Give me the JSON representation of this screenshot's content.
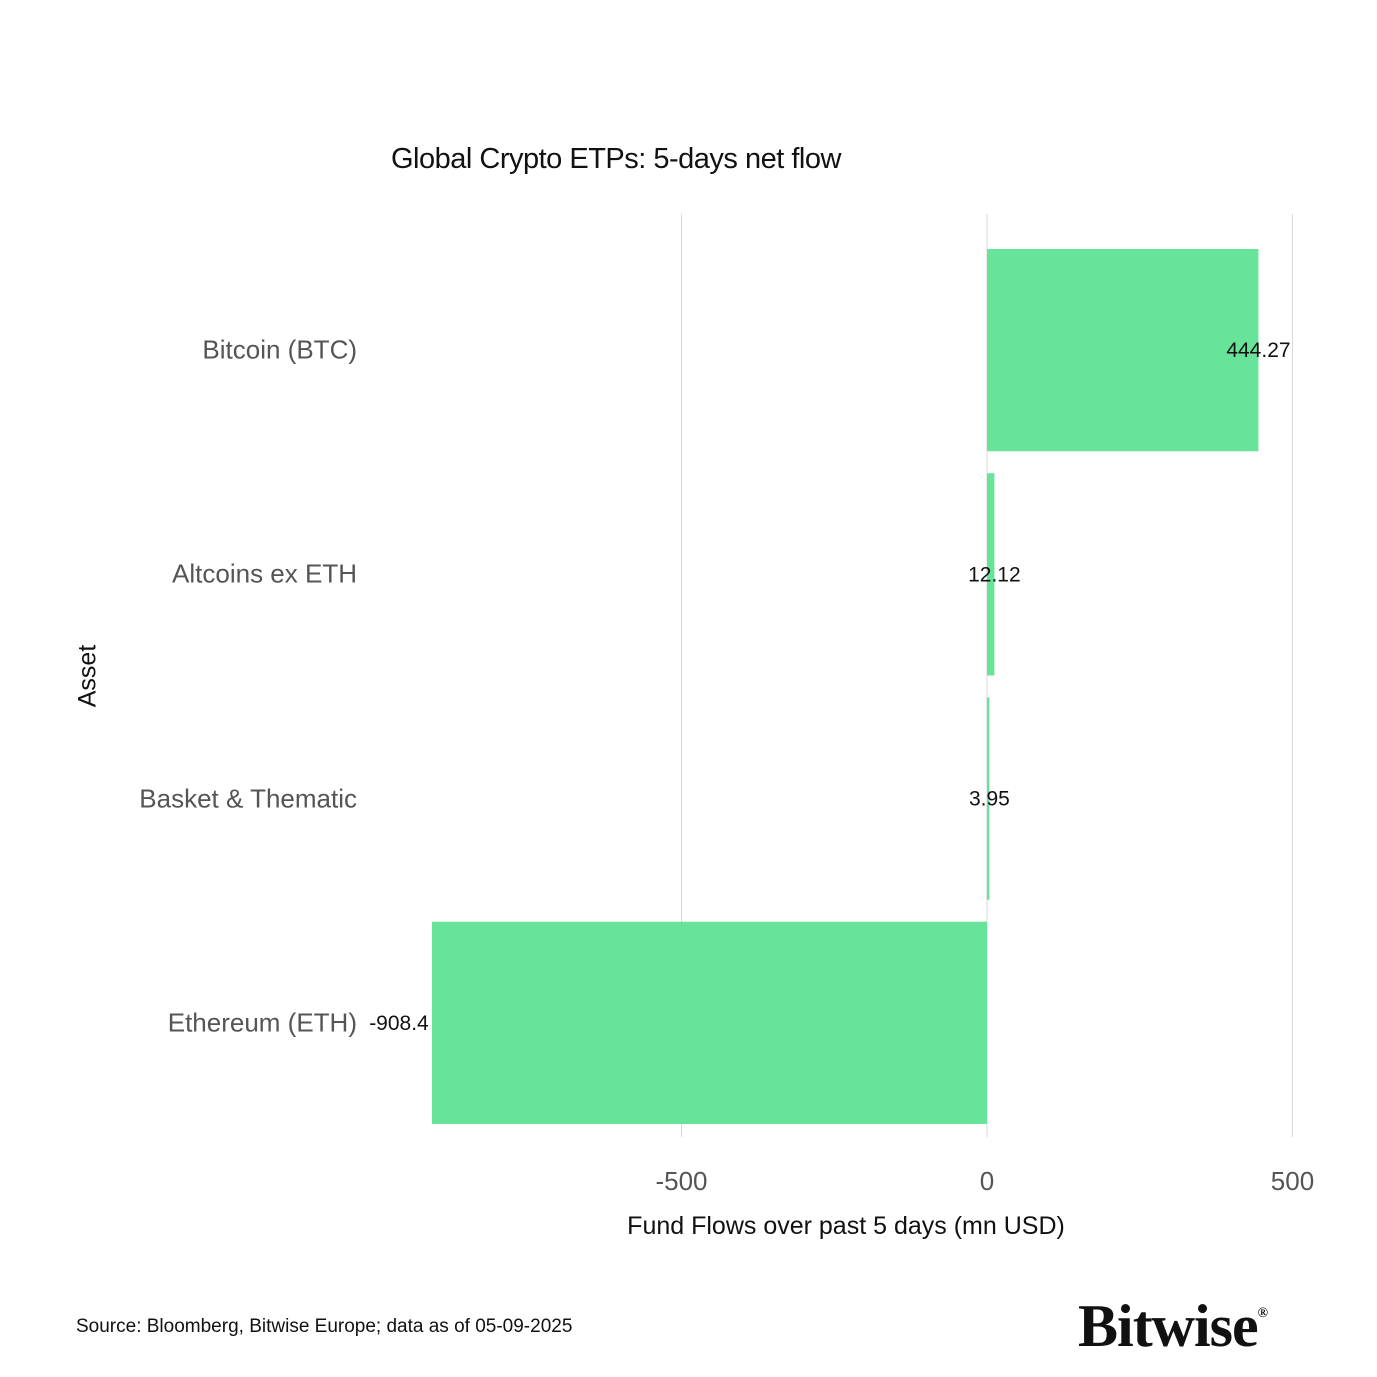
{
  "chart_data": {
    "type": "bar",
    "orientation": "horizontal",
    "title": "Global Crypto ETPs: 5-days net flow",
    "xlabel": "Fund Flows over past 5 days (mn USD)",
    "ylabel": "Asset",
    "categories": [
      "Bitcoin (BTC)",
      "Altcoins ex ETH",
      "Basket & Thematic",
      "Ethereum (ETH)"
    ],
    "values": [
      444.27,
      12.12,
      3.95,
      -908.4
    ],
    "data_labels": [
      "444.27",
      "12.12",
      "3.95",
      "-908.4"
    ],
    "xticks": [
      -500,
      0,
      500
    ],
    "xtick_labels": [
      "-500",
      "0",
      "500"
    ],
    "xlim": [
      -1000,
      500
    ],
    "grid": true,
    "bar_color": "#62e297"
  },
  "footer": {
    "source": "Source: Bloomberg, Bitwise Europe; data as of  05-09-2025",
    "logo": "Bitwise",
    "logo_mark": "®"
  }
}
